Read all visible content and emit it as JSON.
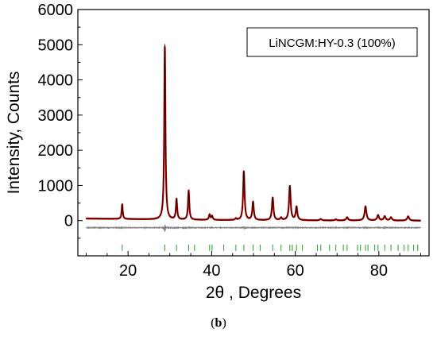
{
  "caption": {
    "open": "(",
    "letter": "b",
    "close": ")"
  },
  "chart_data": {
    "type": "line",
    "xlabel": "2θ , Degrees",
    "ylabel": "Intensity, Counts",
    "xlim": [
      8,
      92
    ],
    "ylim": [
      -1000,
      6000
    ],
    "xticks": [
      20,
      40,
      60,
      80
    ],
    "yticks": [
      0,
      1000,
      2000,
      3000,
      4000,
      5000,
      6000
    ],
    "grid": false,
    "legend": {
      "text": "LiNCGM:HY-0.3 (100%)",
      "placement": "top-right"
    },
    "series": [
      {
        "role": "observed",
        "color": "#cc0000"
      },
      {
        "role": "calculated",
        "color": "#000000"
      },
      {
        "role": "difference",
        "color": "#808080"
      },
      {
        "role": "bragg-positions",
        "color": "#33aa33"
      }
    ],
    "background": [
      [
        10,
        60
      ],
      [
        20,
        45
      ],
      [
        30,
        25
      ],
      [
        50,
        10
      ],
      [
        70,
        5
      ],
      [
        90,
        0
      ]
    ],
    "peaks": [
      {
        "x": 18.6,
        "y": 420
      },
      {
        "x": 28.8,
        "y": 4980
      },
      {
        "x": 31.6,
        "y": 580
      },
      {
        "x": 34.5,
        "y": 820
      },
      {
        "x": 39.5,
        "y": 150
      },
      {
        "x": 40.1,
        "y": 110
      },
      {
        "x": 45.8,
        "y": 40
      },
      {
        "x": 47.7,
        "y": 1380
      },
      {
        "x": 49.9,
        "y": 520
      },
      {
        "x": 54.6,
        "y": 640
      },
      {
        "x": 56.6,
        "y": 70
      },
      {
        "x": 58.7,
        "y": 980
      },
      {
        "x": 60.3,
        "y": 380
      },
      {
        "x": 66.1,
        "y": 40
      },
      {
        "x": 69.7,
        "y": 30
      },
      {
        "x": 72.4,
        "y": 90
      },
      {
        "x": 76.8,
        "y": 400
      },
      {
        "x": 79.8,
        "y": 150
      },
      {
        "x": 81.4,
        "y": 120
      },
      {
        "x": 82.9,
        "y": 90
      },
      {
        "x": 87.0,
        "y": 120
      }
    ],
    "difference_offset": -200,
    "bragg_y": -770,
    "bragg_positions": [
      18.6,
      28.8,
      31.6,
      34.5,
      35.9,
      39.5,
      40.1,
      42.9,
      45.8,
      47.7,
      49.9,
      51.6,
      54.6,
      56.6,
      58.7,
      59.3,
      60.3,
      61.7,
      65.3,
      66.1,
      68.2,
      69.7,
      71.5,
      72.4,
      74.9,
      75.6,
      76.8,
      77.4,
      79.0,
      79.8,
      81.4,
      82.9,
      84.6,
      86.0,
      87.0,
      88.3,
      89.3
    ]
  }
}
